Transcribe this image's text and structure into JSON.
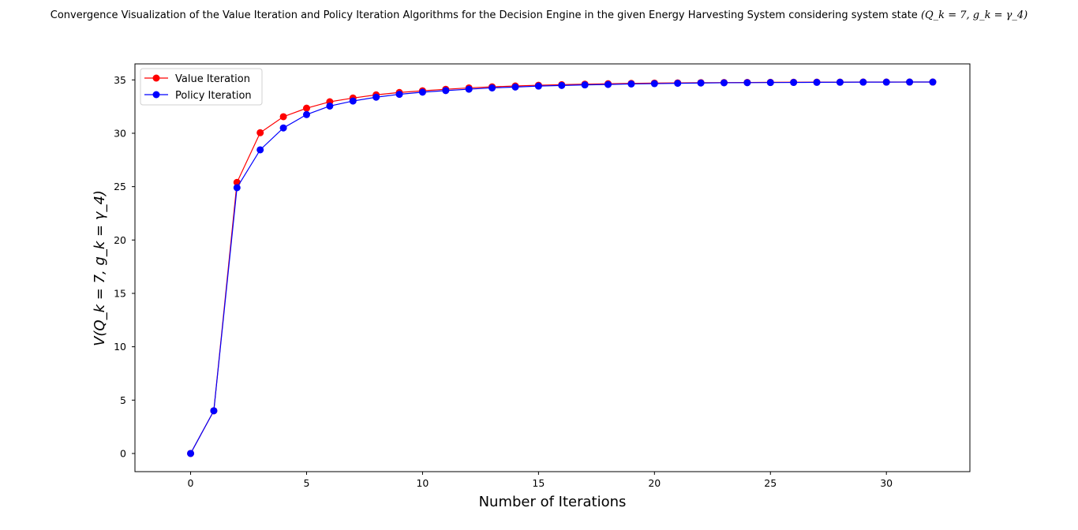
{
  "chart_data": {
    "type": "line",
    "title": "Convergence Visualization of the Value Iteration and Policy Iteration Algorithms for the Decision Engine in the given Energy Harvesting System considering system state",
    "title_math": "(Q_k = 7,  g_k = γ_4)",
    "xlabel": "Number of Iterations",
    "ylabel": "V(Q_k = 7,  g_k = γ_4)",
    "xlim": [
      -2.4,
      33.6
    ],
    "ylim": [
      -1.7,
      36.5
    ],
    "xticks": [
      0,
      5,
      10,
      15,
      20,
      25,
      30
    ],
    "yticks": [
      0,
      5,
      10,
      15,
      20,
      25,
      30,
      35
    ],
    "grid": false,
    "legend_position": "top-left",
    "x": [
      0,
      1,
      2,
      3,
      4,
      5,
      6,
      7,
      8,
      9,
      10,
      11,
      12,
      13,
      14,
      15,
      16,
      17,
      18,
      19,
      20,
      21,
      22,
      23,
      24,
      25,
      26,
      27,
      28,
      29,
      30,
      31,
      32
    ],
    "series": [
      {
        "name": "Value Iteration",
        "color": "#ff0000",
        "values": [
          0,
          4.0,
          25.4,
          30.05,
          31.55,
          32.35,
          32.95,
          33.3,
          33.6,
          33.82,
          33.98,
          34.12,
          34.25,
          34.35,
          34.43,
          34.5,
          34.55,
          34.6,
          34.64,
          34.67,
          34.7,
          34.72,
          34.74,
          34.75,
          34.76,
          34.77,
          34.78,
          34.79,
          34.79,
          34.8,
          34.8,
          34.8,
          34.8
        ]
      },
      {
        "name": "Policy Iteration",
        "color": "#0000ff",
        "values": [
          0,
          4.0,
          24.9,
          28.45,
          30.5,
          31.75,
          32.55,
          33.02,
          33.38,
          33.65,
          33.85,
          34.0,
          34.13,
          34.25,
          34.33,
          34.42,
          34.48,
          34.53,
          34.57,
          34.62,
          34.65,
          34.68,
          34.71,
          34.73,
          34.74,
          34.75,
          34.76,
          34.77,
          34.78,
          34.79,
          34.79,
          34.8,
          34.8
        ]
      }
    ]
  }
}
